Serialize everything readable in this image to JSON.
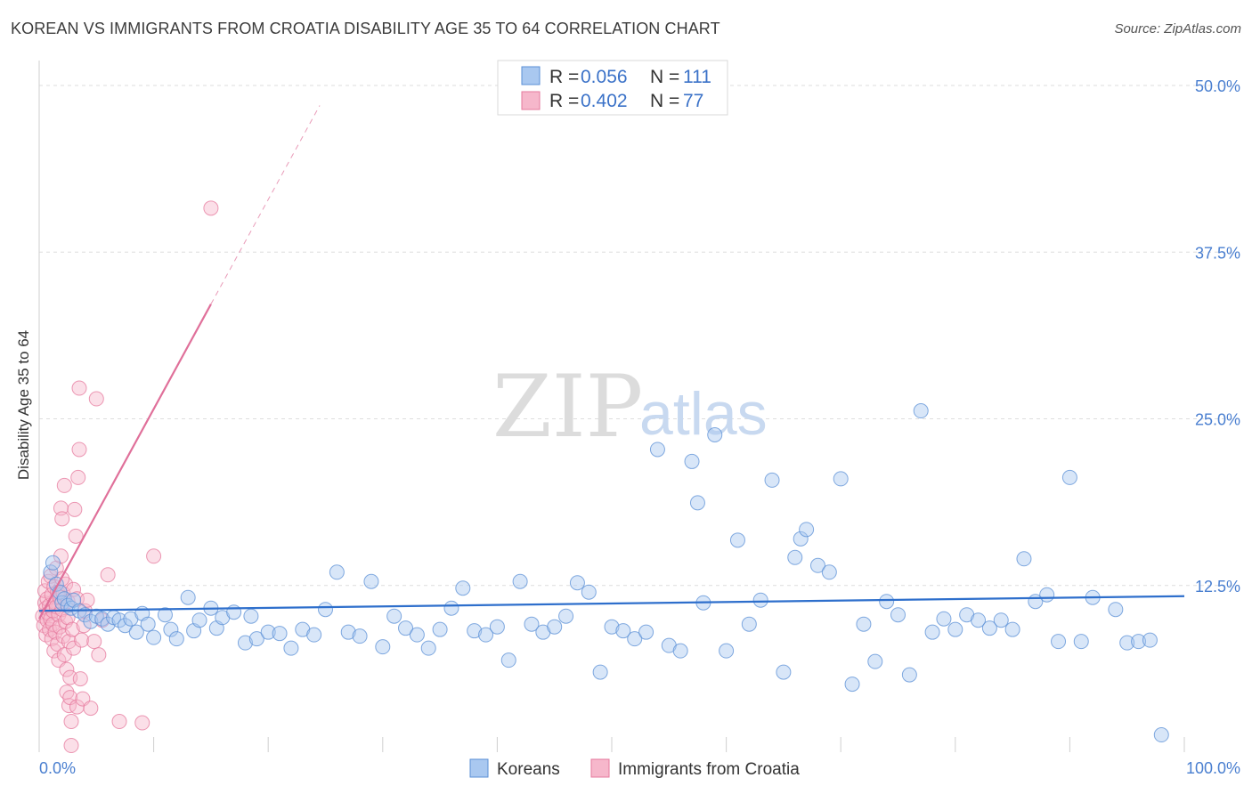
{
  "header": {
    "title": "KOREAN VS IMMIGRANTS FROM CROATIA DISABILITY AGE 35 TO 64 CORRELATION CHART",
    "source": "Source: ZipAtlas.com"
  },
  "watermark": {
    "zip": "ZIP",
    "atlas": "atlas"
  },
  "legend": {
    "rows": [
      {
        "r_label": "R = ",
        "r_value": "0.056",
        "n_label": "N = ",
        "n_value": "111"
      },
      {
        "r_label": "R = ",
        "r_value": "0.402",
        "n_label": "N = ",
        "n_value": "77"
      }
    ]
  },
  "bottom_legend": {
    "series1": "Koreans",
    "series2": "Immigrants from Croatia"
  },
  "colors": {
    "koreans_fill": "#a9c8f0",
    "koreans_stroke": "#5a8fd6",
    "koreans_line": "#2e6fcc",
    "croatia_fill": "#f6b7cb",
    "croatia_stroke": "#e6789c",
    "croatia_line": "#e0709a",
    "grid": "#dedede",
    "axis_label": "#4a7fd0"
  },
  "chart_data": {
    "type": "scatter",
    "title": "KOREAN VS IMMIGRANTS FROM CROATIA DISABILITY AGE 35 TO 64 CORRELATION CHART",
    "xlabel": "",
    "ylabel": "Disability Age 35 to 64",
    "xlim": [
      0,
      100
    ],
    "ylim": [
      0,
      50
    ],
    "x_tick_labels": [
      "0.0%",
      "100.0%"
    ],
    "y_ticks": [
      12.5,
      25.0,
      37.5,
      50.0
    ],
    "y_tick_labels": [
      "12.5%",
      "25.0%",
      "37.5%",
      "50.0%"
    ],
    "series": [
      {
        "name": "Koreans",
        "r": 0.056,
        "n": 111,
        "trend": {
          "x": [
            0,
            100
          ],
          "y": [
            10.6,
            11.7
          ]
        },
        "points": [
          [
            1.0,
            13.5
          ],
          [
            1.2,
            14.2
          ],
          [
            1.5,
            12.6
          ],
          [
            1.8,
            12.0
          ],
          [
            2.0,
            11.2
          ],
          [
            2.2,
            11.5
          ],
          [
            2.5,
            11.0
          ],
          [
            2.8,
            10.8
          ],
          [
            3.0,
            11.4
          ],
          [
            3.5,
            10.6
          ],
          [
            4.0,
            10.3
          ],
          [
            4.5,
            9.8
          ],
          [
            5.0,
            10.2
          ],
          [
            5.5,
            10.0
          ],
          [
            6.0,
            9.6
          ],
          [
            6.5,
            10.1
          ],
          [
            7.0,
            9.9
          ],
          [
            7.5,
            9.5
          ],
          [
            8.0,
            10.0
          ],
          [
            8.5,
            9.0
          ],
          [
            9.0,
            10.4
          ],
          [
            9.5,
            9.6
          ],
          [
            10.0,
            8.6
          ],
          [
            11.0,
            10.3
          ],
          [
            11.5,
            9.2
          ],
          [
            12.0,
            8.5
          ],
          [
            13.0,
            11.6
          ],
          [
            13.5,
            9.1
          ],
          [
            14.0,
            9.9
          ],
          [
            15.0,
            10.8
          ],
          [
            15.5,
            9.3
          ],
          [
            16.0,
            10.1
          ],
          [
            17.0,
            10.5
          ],
          [
            18.0,
            8.2
          ],
          [
            18.5,
            10.2
          ],
          [
            19.0,
            8.5
          ],
          [
            20.0,
            9.0
          ],
          [
            21.0,
            8.9
          ],
          [
            22.0,
            7.8
          ],
          [
            23.0,
            9.2
          ],
          [
            24.0,
            8.8
          ],
          [
            25.0,
            10.7
          ],
          [
            26.0,
            13.5
          ],
          [
            27.0,
            9.0
          ],
          [
            28.0,
            8.7
          ],
          [
            29.0,
            12.8
          ],
          [
            30.0,
            7.9
          ],
          [
            31.0,
            10.2
          ],
          [
            32.0,
            9.3
          ],
          [
            33.0,
            8.8
          ],
          [
            34.0,
            7.8
          ],
          [
            35.0,
            9.2
          ],
          [
            36.0,
            10.8
          ],
          [
            37.0,
            12.3
          ],
          [
            38.0,
            9.1
          ],
          [
            39.0,
            8.8
          ],
          [
            40.0,
            9.4
          ],
          [
            41.0,
            6.9
          ],
          [
            42.0,
            12.8
          ],
          [
            43.0,
            9.6
          ],
          [
            44.0,
            9.0
          ],
          [
            45.0,
            9.4
          ],
          [
            46.0,
            10.2
          ],
          [
            47.0,
            12.7
          ],
          [
            48.0,
            12.0
          ],
          [
            49.0,
            6.0
          ],
          [
            50.0,
            9.4
          ],
          [
            51.0,
            9.1
          ],
          [
            52.0,
            8.5
          ],
          [
            53.0,
            9.0
          ],
          [
            54.0,
            22.7
          ],
          [
            55.0,
            8.0
          ],
          [
            56.0,
            7.6
          ],
          [
            57.0,
            21.8
          ],
          [
            57.5,
            18.7
          ],
          [
            58.0,
            11.2
          ],
          [
            59.0,
            23.8
          ],
          [
            60.0,
            7.6
          ],
          [
            61.0,
            15.9
          ],
          [
            62.0,
            9.6
          ],
          [
            63.0,
            11.4
          ],
          [
            64.0,
            20.4
          ],
          [
            65.0,
            6.0
          ],
          [
            66.0,
            14.6
          ],
          [
            66.5,
            16.0
          ],
          [
            67.0,
            16.7
          ],
          [
            68.0,
            14.0
          ],
          [
            69.0,
            13.5
          ],
          [
            70.0,
            20.5
          ],
          [
            71.0,
            5.1
          ],
          [
            72.0,
            9.6
          ],
          [
            73.0,
            6.8
          ],
          [
            74.0,
            11.3
          ],
          [
            75.0,
            10.3
          ],
          [
            76.0,
            5.8
          ],
          [
            77.0,
            25.6
          ],
          [
            78.0,
            9.0
          ],
          [
            79.0,
            10.0
          ],
          [
            80.0,
            9.2
          ],
          [
            81.0,
            10.3
          ],
          [
            82.0,
            9.9
          ],
          [
            83.0,
            9.3
          ],
          [
            84.0,
            9.9
          ],
          [
            85.0,
            9.2
          ],
          [
            86.0,
            14.5
          ],
          [
            87.0,
            11.3
          ],
          [
            88.0,
            11.8
          ],
          [
            89.0,
            8.3
          ],
          [
            90.0,
            20.6
          ],
          [
            91.0,
            8.3
          ],
          [
            92.0,
            11.6
          ],
          [
            94.0,
            10.7
          ],
          [
            95.0,
            8.2
          ],
          [
            96.0,
            8.3
          ],
          [
            97.0,
            8.4
          ],
          [
            98.0,
            1.3
          ]
        ]
      },
      {
        "name": "Immigrants from Croatia",
        "r": 0.402,
        "n": 77,
        "trend": {
          "x": [
            0,
            15
          ],
          "y": [
            10.0,
            33.6
          ]
        },
        "trend_dashed": {
          "x": [
            15,
            24.5
          ],
          "y": [
            33.6,
            48.5
          ]
        },
        "points": [
          [
            0.3,
            10.2
          ],
          [
            0.4,
            9.5
          ],
          [
            0.5,
            11.2
          ],
          [
            0.5,
            12.1
          ],
          [
            0.6,
            8.8
          ],
          [
            0.6,
            10.8
          ],
          [
            0.7,
            9.9
          ],
          [
            0.7,
            11.5
          ],
          [
            0.8,
            10.4
          ],
          [
            0.8,
            12.8
          ],
          [
            0.9,
            9.2
          ],
          [
            0.9,
            11.0
          ],
          [
            1.0,
            13.2
          ],
          [
            1.0,
            10.0
          ],
          [
            1.1,
            8.5
          ],
          [
            1.1,
            11.8
          ],
          [
            1.2,
            9.6
          ],
          [
            1.2,
            10.6
          ],
          [
            1.3,
            12.4
          ],
          [
            1.3,
            7.6
          ],
          [
            1.4,
            11.2
          ],
          [
            1.4,
            9.0
          ],
          [
            1.5,
            10.9
          ],
          [
            1.5,
            13.8
          ],
          [
            1.6,
            8.1
          ],
          [
            1.6,
            12.0
          ],
          [
            1.7,
            10.3
          ],
          [
            1.7,
            6.9
          ],
          [
            1.8,
            11.6
          ],
          [
            1.8,
            9.4
          ],
          [
            1.9,
            14.7
          ],
          [
            1.9,
            18.3
          ],
          [
            2.0,
            10.7
          ],
          [
            2.0,
            17.5
          ],
          [
            2.1,
            8.7
          ],
          [
            2.1,
            11.9
          ],
          [
            2.2,
            20.0
          ],
          [
            2.2,
            7.3
          ],
          [
            2.3,
            9.8
          ],
          [
            2.3,
            12.6
          ],
          [
            2.4,
            6.2
          ],
          [
            2.4,
            4.5
          ],
          [
            2.5,
            11.3
          ],
          [
            2.5,
            10.1
          ],
          [
            2.6,
            3.5
          ],
          [
            2.6,
            8.3
          ],
          [
            2.7,
            5.6
          ],
          [
            2.7,
            4.1
          ],
          [
            2.8,
            2.3
          ],
          [
            2.8,
            0.5
          ],
          [
            2.9,
            9.2
          ],
          [
            3.0,
            12.2
          ],
          [
            3.0,
            7.8
          ],
          [
            3.1,
            18.2
          ],
          [
            3.2,
            16.2
          ],
          [
            3.3,
            11.5
          ],
          [
            3.3,
            3.4
          ],
          [
            3.4,
            20.6
          ],
          [
            3.5,
            22.7
          ],
          [
            3.5,
            27.3
          ],
          [
            3.6,
            5.5
          ],
          [
            3.7,
            8.4
          ],
          [
            3.8,
            4.0
          ],
          [
            3.9,
            9.5
          ],
          [
            4.0,
            10.6
          ],
          [
            4.2,
            11.4
          ],
          [
            4.5,
            3.3
          ],
          [
            4.8,
            8.3
          ],
          [
            5.0,
            26.5
          ],
          [
            5.2,
            7.3
          ],
          [
            5.5,
            9.9
          ],
          [
            6.0,
            13.3
          ],
          [
            7.0,
            2.3
          ],
          [
            9.0,
            2.2
          ],
          [
            10.0,
            14.7
          ],
          [
            15.0,
            40.8
          ],
          [
            2.0,
            13.0
          ]
        ]
      }
    ]
  }
}
